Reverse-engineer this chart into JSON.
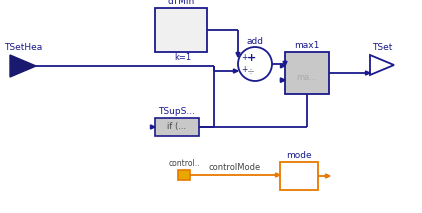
{
  "blue": "#1a1a8c",
  "dark_blue": "#191970",
  "orange": "#e87800",
  "amber": "#e8a800",
  "gray_fill": "#c8c8c8",
  "light_fill": "#f0f0f0",
  "white": "#ffffff",
  "black": "#000000",
  "dark_gray": "#444444",
  "TSetHea_label": "TSetHea",
  "TSet_label": "TSet",
  "dTMin_label": "dTMin",
  "add_label": "add",
  "max1_label": "max1",
  "TSupS_label": "TSupS...",
  "if_label": "if (...",
  "mode_label": "mode",
  "control_label": "control..",
  "controlMode_label": "controlMode",
  "k1_label": "k=1",
  "ma_label": "ma...",
  "figsize": [
    4.22,
    2.13
  ],
  "dpi": 100
}
